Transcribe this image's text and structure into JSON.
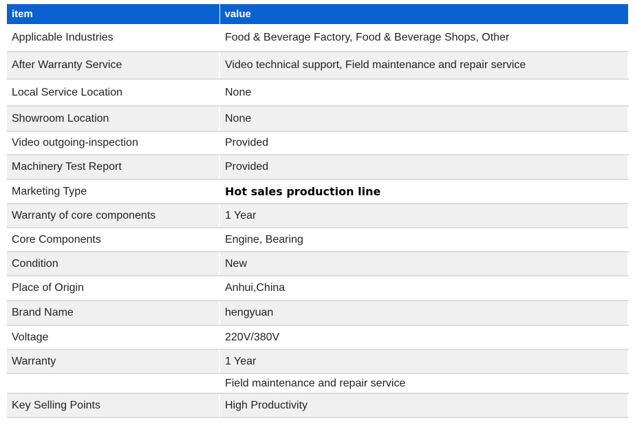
{
  "header": {
    "item": "item",
    "value": "value"
  },
  "rows": [
    {
      "item": "Applicable Industries",
      "value": "Food & Beverage Factory, Food & Beverage Shops, Other"
    },
    {
      "item": "After Warranty Service",
      "value": "Video technical support, Field maintenance and repair service"
    },
    {
      "item": "Local Service Location",
      "value": "None"
    },
    {
      "item": "Showroom Location",
      "value": "None"
    },
    {
      "item": "Video outgoing-inspection",
      "value": "Provided"
    },
    {
      "item": "Machinery Test Report",
      "value": "Provided"
    },
    {
      "item": "Marketing Type",
      "value": "Hot sales production line"
    },
    {
      "item": "Warranty of core components",
      "value": "1 Year"
    },
    {
      "item": "Core Components",
      "value": "Engine, Bearing"
    },
    {
      "item": "Condition",
      "value": "New"
    },
    {
      "item": "Place of Origin",
      "value": "Anhui,China"
    },
    {
      "item": "Brand Name",
      "value": "hengyuan"
    },
    {
      "item": "Voltage",
      "value": "220V/380V"
    },
    {
      "item": "Warranty",
      "value": "1 Year"
    },
    {
      "item": "",
      "value": "Field maintenance and repair service"
    },
    {
      "item": "Key Selling Points",
      "value": "High Productivity"
    }
  ]
}
